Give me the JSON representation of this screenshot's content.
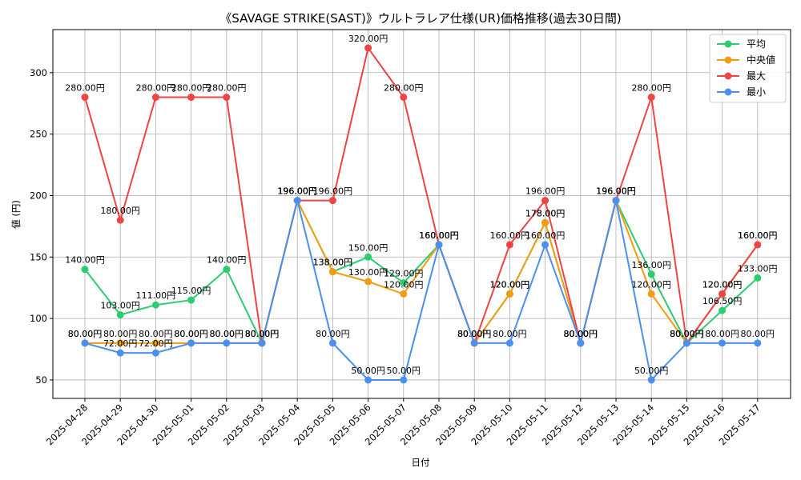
{
  "chart_data": {
    "type": "line",
    "title": "《SAVAGE STRIKE(SAST)》ウルトラレア仕様(UR)価格推移(過去30日間)",
    "xlabel": "日付",
    "ylabel": "値 (円)",
    "x": [
      "2025-04-28",
      "2025-04-29",
      "2025-04-30",
      "2025-05-01",
      "2025-05-02",
      "2025-05-03",
      "2025-05-04",
      "2025-05-05",
      "2025-05-06",
      "2025-05-07",
      "2025-05-08",
      "2025-05-09",
      "2025-05-10",
      "2025-05-11",
      "2025-05-12",
      "2025-05-13",
      "2025-05-14",
      "2025-05-15",
      "2025-05-16",
      "2025-05-17"
    ],
    "yticks": [
      50,
      100,
      150,
      200,
      250,
      300
    ],
    "ylim": [
      35,
      335
    ],
    "grid": true,
    "legend_position": "top-right",
    "label_suffix": "円",
    "series": [
      {
        "name": "平均",
        "color": "#2ecc71",
        "values": [
          140,
          103,
          111,
          115,
          140,
          80,
          196,
          138,
          150,
          129,
          160,
          80,
          120,
          178,
          80,
          196,
          136,
          80,
          106.5,
          133
        ]
      },
      {
        "name": "中央値",
        "color": "#f39c12",
        "values": [
          80,
          80,
          80,
          80,
          80,
          80,
          196,
          138,
          130,
          120,
          160,
          80,
          120,
          178,
          80,
          196,
          120,
          80,
          120,
          160
        ]
      },
      {
        "name": "最大",
        "color": "#ef4444",
        "values": [
          280,
          180,
          280,
          280,
          280,
          80,
          196,
          196,
          320,
          280,
          160,
          80,
          160,
          196,
          80,
          196,
          280,
          80,
          120,
          160
        ]
      },
      {
        "name": "最小",
        "color": "#4a90f0",
        "values": [
          80,
          72,
          72,
          80,
          80,
          80,
          196,
          80,
          50,
          50,
          160,
          80,
          80,
          160,
          80,
          196,
          50,
          80,
          80,
          80
        ]
      }
    ]
  }
}
